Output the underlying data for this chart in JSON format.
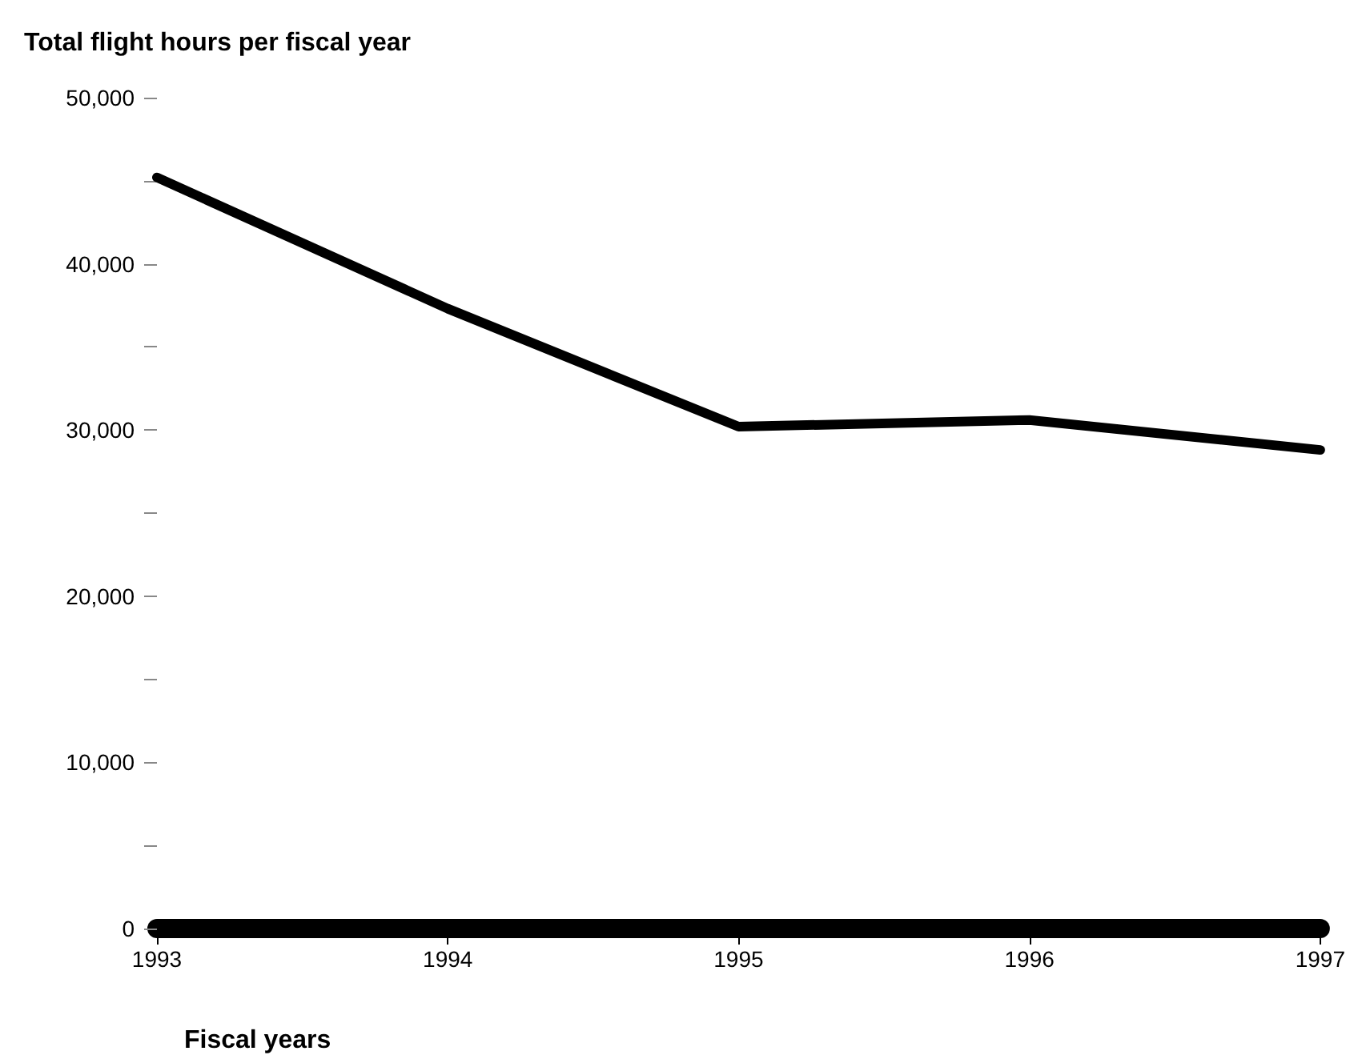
{
  "chart_data": {
    "type": "line",
    "title": "Total flight hours per fiscal year",
    "xlabel": "Fiscal years",
    "categories": [
      "1993",
      "1994",
      "1995",
      "1996",
      "1997"
    ],
    "series": [
      {
        "color": "#000000",
        "values": [
          45200,
          37300,
          30200,
          30600,
          28800
        ]
      }
    ],
    "ylim": [
      0,
      50000
    ],
    "yticks": [
      0,
      {
        "value": 5000,
        "label": null
      },
      {
        "value": 10000,
        "label": "10,000"
      },
      {
        "value": 15000,
        "label": null
      },
      {
        "value": 20000,
        "label": "20,000"
      },
      {
        "value": 25000,
        "label": null
      },
      {
        "value": 30000,
        "label": "30,000"
      },
      {
        "value": 35000,
        "label": null
      },
      {
        "value": 40000,
        "label": "40,000"
      },
      {
        "value": 45000,
        "label": null
      },
      {
        "value": 50000,
        "label": "50,000"
      }
    ],
    "marker": "none",
    "line_style": "solid"
  }
}
